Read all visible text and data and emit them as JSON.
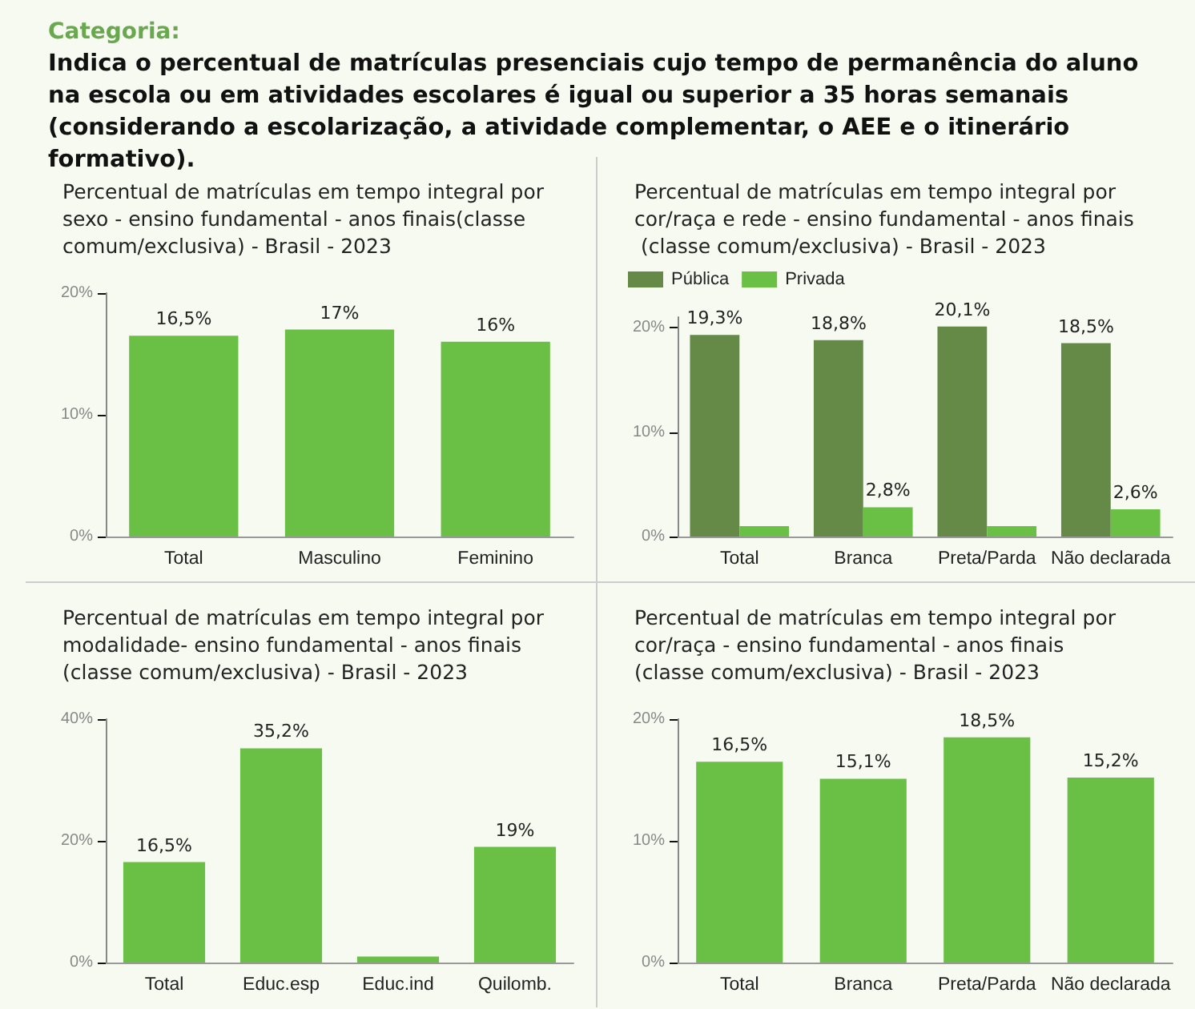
{
  "chart_data": [
    {
      "type": "other",
      "title": "Categoria:",
      "subtitle": "Indica o percentual de matrículas presenciais cujo tempo de permanência do aluno na escola ou em atividades escolares é igual ou superior a 35 horas semanais (considerando a escolarização, a atividade complementar, o AEE e o itinerário formativo)."
    },
    {
      "type": "bar",
      "title": "Percentual de matrículas em tempo integral por sexo - ensino fundamental - anos finais(classe comum/exclusiva) - Brasil - 2023",
      "categories": [
        "Total",
        "Masculino",
        "Feminino"
      ],
      "series": [
        {
          "color": "#6abf45",
          "values": [
            16.5,
            17,
            16
          ],
          "value_labels": [
            "16,5%",
            "17%",
            "16%"
          ]
        }
      ],
      "ylim": [
        0,
        20
      ],
      "yticks": [
        {
          "value": 0,
          "label": "0%"
        },
        {
          "value": 10,
          "label": "10%"
        },
        {
          "value": 20,
          "label": "20%"
        }
      ],
      "grid": false,
      "legend": false
    },
    {
      "type": "bar",
      "title": "Percentual de matrículas em tempo integral por cor/raça e rede - ensino fundamental - anos finais (classe comum/exclusiva) - Brasil - 2023",
      "categories": [
        "Total",
        "Branca",
        "Preta/Parda",
        "Não declarada"
      ],
      "series": [
        {
          "name": "Pública",
          "color": "#658947",
          "values": [
            19.3,
            18.8,
            20.1,
            18.5
          ],
          "value_labels": [
            "19,3%",
            "18,8%",
            "20,1%",
            "18,5%"
          ]
        },
        {
          "name": "Privada",
          "color": "#6abf45",
          "values": [
            1.0,
            2.8,
            1.0,
            2.6
          ],
          "value_labels": [
            null,
            "2,8%",
            null,
            "2,6%"
          ]
        }
      ],
      "ylim": [
        0,
        21
      ],
      "yticks": [
        {
          "value": 0,
          "label": "0%"
        },
        {
          "value": 10,
          "label": "10%"
        },
        {
          "value": 20,
          "label": "20%"
        }
      ],
      "grid": false,
      "legend": "top left"
    },
    {
      "type": "bar",
      "title": "Percentual de matrículas em tempo integral por modalidade- ensino fundamental - anos finais (classe comum/exclusiva) - Brasil - 2023",
      "categories": [
        "Total",
        "Educ.esp",
        "Educ.ind",
        "Quilomb."
      ],
      "series": [
        {
          "color": "#6abf45",
          "values": [
            16.5,
            35.2,
            1.0,
            19
          ],
          "value_labels": [
            "16,5%",
            "35,2%",
            null,
            "19%"
          ]
        }
      ],
      "ylim": [
        0,
        40
      ],
      "yticks": [
        {
          "value": 0,
          "label": "0%"
        },
        {
          "value": 20,
          "label": "20%"
        },
        {
          "value": 40,
          "label": "40%"
        }
      ],
      "grid": false,
      "legend": false
    },
    {
      "type": "bar",
      "title": "Percentual de matrículas em tempo integral por cor/raça - ensino fundamental - anos finais (classe comum/exclusiva) - Brasil - 2023",
      "categories": [
        "Total",
        "Branca",
        "Preta/Parda",
        "Não declarada"
      ],
      "series": [
        {
          "color": "#6abf45",
          "values": [
            16.5,
            15.1,
            18.5,
            15.2
          ],
          "value_labels": [
            "16,5%",
            "15,1%",
            "18,5%",
            "15,2%"
          ]
        }
      ],
      "ylim": [
        0,
        20
      ],
      "yticks": [
        {
          "value": 0,
          "label": "0%"
        },
        {
          "value": 10,
          "label": "10%"
        },
        {
          "value": 20,
          "label": "20%"
        }
      ],
      "grid": false,
      "legend": false
    }
  ]
}
